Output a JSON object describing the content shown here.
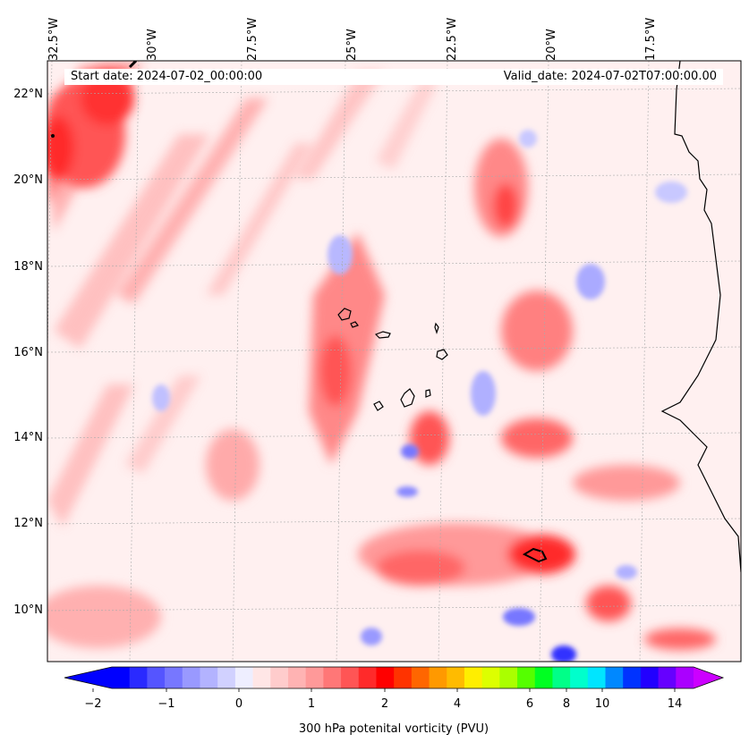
{
  "header": {
    "start_date": "Start date: 2024-07-02_00:00:00",
    "valid_date": "Valid_date: 2024-07-02T07:00:00.00"
  },
  "longitude_labels": [
    "32.5°W",
    "30°W",
    "27.5°W",
    "25°W",
    "22.5°W",
    "20°W",
    "17.5°W"
  ],
  "latitude_labels": [
    "22°N",
    "20°N",
    "18°N",
    "16°N",
    "14°N",
    "12°N",
    "10°N"
  ],
  "colorbar": {
    "label": "300 hPa potenital vorticity (PVU)",
    "tick_labels": [
      "−2",
      "−1",
      "0",
      "1",
      "2",
      "4",
      "6",
      "8",
      "10",
      "14"
    ],
    "colors": [
      "#0000ff",
      "#2a2aff",
      "#5555ff",
      "#7777ff",
      "#9999ff",
      "#b3b3ff",
      "#d1d1ff",
      "#eeeeff",
      "#ffe6e6",
      "#ffcccc",
      "#ffb3b3",
      "#ff9999",
      "#ff7777",
      "#ff5555",
      "#ff2a2a",
      "#ff0000",
      "#ff3300",
      "#ff6600",
      "#ff9900",
      "#ffbb00",
      "#ffee00",
      "#ddff00",
      "#aaff00",
      "#55ff00",
      "#00ff22",
      "#00ff88",
      "#00ffcc",
      "#00e5ff",
      "#0088ff",
      "#0033ff",
      "#2200ff",
      "#6600ff",
      "#aa00ff"
    ],
    "under_color": "#0000ff",
    "over_color": "#cc00ff"
  },
  "map": {
    "background_color": "#fff0f0",
    "coastline_color": "#000000",
    "gridline_color": "#aaaaaa"
  }
}
